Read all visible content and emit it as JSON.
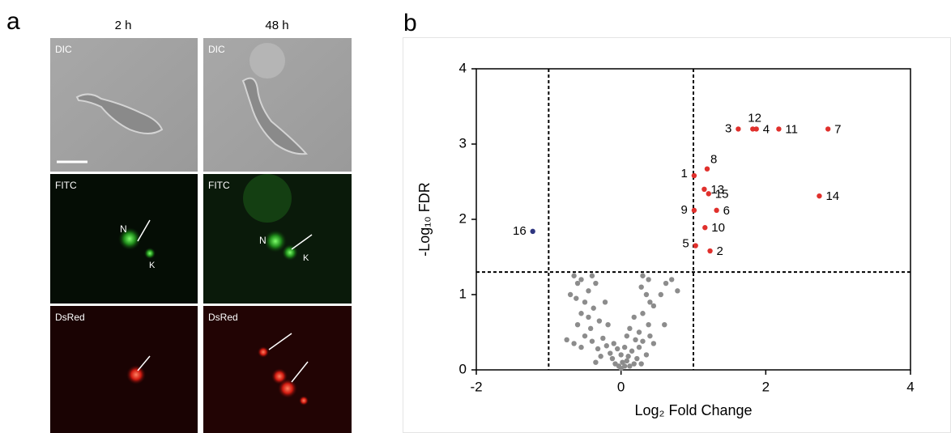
{
  "panel_a": {
    "letter": "a",
    "columns": [
      "2 h",
      "48 h"
    ],
    "rows": [
      "DIC",
      "FITC",
      "DsRed"
    ],
    "fitc_markers": [
      [
        "N",
        "K"
      ],
      [
        "N",
        "K"
      ]
    ]
  },
  "panel_b": {
    "letter": "b"
  },
  "chart_data": {
    "type": "scatter",
    "xlabel": "Log₂ Fold Change",
    "ylabel": "-Log₁₀ FDR",
    "xlim": [
      -2,
      4
    ],
    "ylim": [
      0,
      4
    ],
    "xticks": [
      -2,
      0,
      2,
      4
    ],
    "yticks": [
      0,
      1,
      2,
      3,
      4
    ],
    "vlines": [
      -1,
      1
    ],
    "hline": 1.3,
    "series": [
      {
        "color": "#8c8c8c",
        "x": [
          -0.65,
          -0.6,
          -0.55,
          -0.4,
          -0.35,
          -0.45,
          -0.7,
          -0.62,
          -0.5,
          -0.38,
          -0.55,
          -0.45,
          -0.6,
          -0.3,
          -0.42,
          -0.5,
          -0.65,
          -0.55,
          -0.4,
          -0.32,
          -0.25,
          -0.2,
          -0.15,
          -0.28,
          -0.1,
          -0.05,
          -0.12,
          0.0,
          0.05,
          0.1,
          0.02,
          -0.03,
          0.05,
          0.08,
          -0.08,
          0.0,
          0.12,
          0.15,
          0.2,
          0.25,
          0.3,
          0.22,
          0.35,
          0.28,
          0.18,
          0.4,
          0.45,
          0.38,
          0.3,
          0.45,
          0.4,
          0.35,
          0.28,
          0.38,
          0.3,
          0.55,
          0.62,
          0.7,
          0.78,
          0.12,
          0.18,
          -0.18,
          -0.22,
          0.08,
          -0.35,
          0.25,
          0.6,
          -0.75
        ],
        "values": [
          1.25,
          1.15,
          1.2,
          1.25,
          1.15,
          1.05,
          1.0,
          0.95,
          0.9,
          0.82,
          0.75,
          0.7,
          0.6,
          0.65,
          0.55,
          0.45,
          0.35,
          0.3,
          0.38,
          0.28,
          0.42,
          0.32,
          0.22,
          0.18,
          0.35,
          0.28,
          0.15,
          0.2,
          0.3,
          0.18,
          0.1,
          0.05,
          0.05,
          0.12,
          0.08,
          0.02,
          0.05,
          0.25,
          0.4,
          0.3,
          0.38,
          0.15,
          0.2,
          0.08,
          0.08,
          0.45,
          0.35,
          0.6,
          0.75,
          0.85,
          0.9,
          1.0,
          1.1,
          1.2,
          1.25,
          1.0,
          1.15,
          1.2,
          1.05,
          0.55,
          0.7,
          0.6,
          0.9,
          0.45,
          0.1,
          0.5,
          0.6,
          0.4
        ]
      },
      {
        "color": "#e0302c",
        "x": [
          1.62,
          1.82,
          1.87,
          2.18,
          2.86,
          1.19,
          1.01,
          1.15,
          1.21,
          2.74,
          1.01,
          1.32,
          1.16,
          1.03,
          1.23
        ],
        "values": [
          3.2,
          3.2,
          3.2,
          3.2,
          3.2,
          2.67,
          2.58,
          2.4,
          2.34,
          2.31,
          2.12,
          2.12,
          1.89,
          1.65,
          1.58
        ],
        "labels": [
          "3",
          "12",
          "4",
          "11",
          "7",
          "8",
          "1",
          "13",
          "15",
          "14",
          "9",
          "6",
          "10",
          "5",
          "2"
        ]
      },
      {
        "color": "#2e3580",
        "x": [
          -1.22
        ],
        "values": [
          1.84
        ],
        "labels": [
          "16"
        ]
      }
    ]
  }
}
